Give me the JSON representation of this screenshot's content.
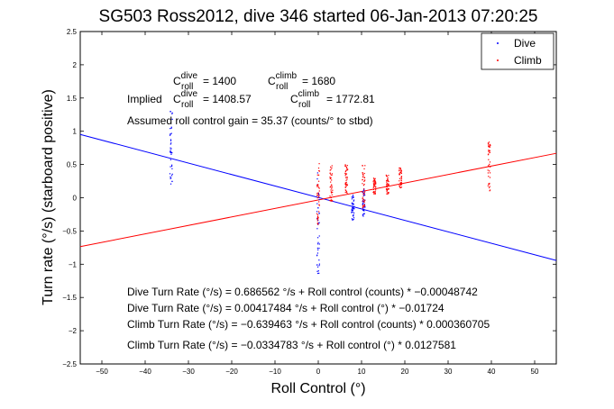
{
  "chart_data": {
    "type": "scatter",
    "title": "SG503 Ross2012, dive 346 started 06-Jan-2013 07:20:25",
    "xlabel": "Roll Control (°)",
    "ylabel": "Turn rate (°/s) (starboard positive)",
    "xlim": [
      -55,
      55
    ],
    "ylim": [
      -2.5,
      2.5
    ],
    "x_ticks": [
      -50,
      -40,
      -30,
      -20,
      -10,
      0,
      10,
      20,
      30,
      40,
      50
    ],
    "y_ticks": [
      -2.5,
      -2,
      -1.5,
      -1,
      -0.5,
      0,
      0.5,
      1,
      1.5,
      2,
      2.5
    ],
    "x_tick_labels": [
      "−50",
      "−40",
      "−30",
      "−20",
      "−10",
      "0",
      "10",
      "20",
      "30",
      "40",
      "50"
    ],
    "y_tick_labels": [
      "−2.5",
      "−2",
      "−1.5",
      "−1",
      "−0.5",
      "0",
      "0.5",
      "1",
      "1.5",
      "2",
      "2.5"
    ],
    "grid": false,
    "legend_position": "top-right",
    "series": [
      {
        "name": "Dive",
        "color": "#0000ff",
        "marker": "dot",
        "clusters": [
          {
            "x": -34,
            "y_range": [
              0.15,
              1.35
            ]
          },
          {
            "x": 0,
            "y_range": [
              -1.15,
              0.55
            ]
          },
          {
            "x": 8,
            "y_range": [
              -0.35,
              0.05
            ]
          },
          {
            "x": 10.5,
            "y_range": [
              -0.3,
              0.15
            ]
          }
        ]
      },
      {
        "name": "Climb",
        "color": "#ff0000",
        "marker": "dot",
        "clusters": [
          {
            "x": 0,
            "y_range": [
              -0.4,
              0.55
            ]
          },
          {
            "x": 3,
            "y_range": [
              -0.05,
              0.5
            ]
          },
          {
            "x": 6.5,
            "y_range": [
              0.05,
              0.5
            ]
          },
          {
            "x": 10.5,
            "y_range": [
              -0.2,
              0.5
            ]
          },
          {
            "x": 13,
            "y_range": [
              0.05,
              0.3
            ]
          },
          {
            "x": 16,
            "y_range": [
              0.05,
              0.35
            ]
          },
          {
            "x": 19,
            "y_range": [
              0.15,
              0.45
            ]
          },
          {
            "x": 39.5,
            "y_range": [
              0.1,
              0.85
            ]
          }
        ]
      }
    ],
    "fit_lines": [
      {
        "series": "Dive",
        "color": "#0000ff",
        "intercept": 0.00417484,
        "slope": -0.01724
      },
      {
        "series": "Climb",
        "color": "#ff0000",
        "intercept": -0.0334783,
        "slope": 0.0127581
      }
    ],
    "annotations": {
      "roll_line1": {
        "c1_base": "C",
        "c1_sup": "dive",
        "c1_sub": "roll",
        "c1_value": " = 1400",
        "c2_base": "C",
        "c2_sup": "climb",
        "c2_sub": "roll",
        "c2_value": " = 1680"
      },
      "roll_line2": {
        "prefix": "Implied ",
        "c1_base": "C",
        "c1_sup": "dive",
        "c1_sub": "roll",
        "c1_value": " = 1408.57",
        "c2_base": "C",
        "c2_sup": "climb",
        "c2_sub": "roll",
        "c2_value": " = 1772.81"
      },
      "gain": "Assumed roll control gain = 35.37 (counts/° to stbd)",
      "equations": [
        "Dive Turn Rate (°/s) = 0.686562 °/s + Roll control (counts) * −0.00048742",
        "Dive Turn Rate (°/s) = 0.00417484 °/s + Roll control (°) * −0.01724",
        "Climb Turn Rate (°/s) = −0.639463 °/s + Roll control (counts) * 0.000360705",
        "Climb Turn Rate (°/s) = −0.0334783 °/s + Roll control (°) * 0.0127581"
      ]
    }
  }
}
